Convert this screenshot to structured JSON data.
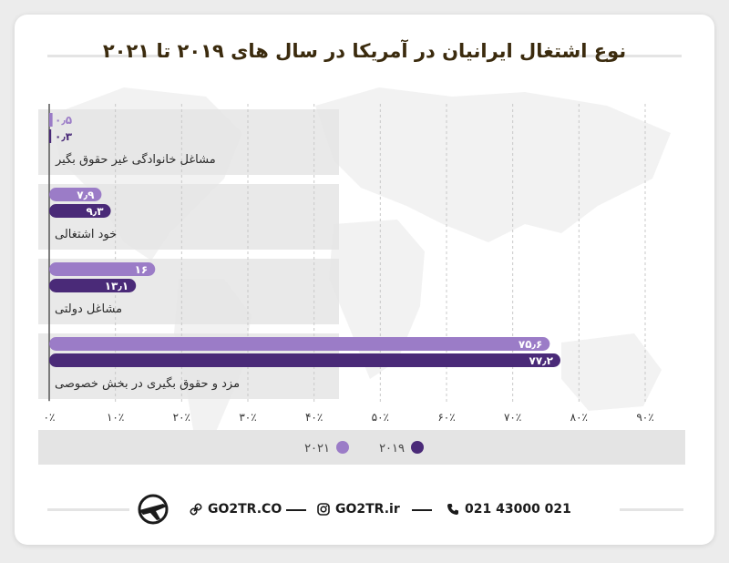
{
  "title": "نوع اشتغال ایرانیان در آمریکا در سال های ۲۰۱۹ تا ۲۰۲۱",
  "colors": {
    "y2019": "#4a2a78",
    "y2021": "#9b7cc7",
    "rowBg": "#e5e5e5",
    "legendBg": "#e4e4e4"
  },
  "chart_data": {
    "type": "bar",
    "orientation": "horizontal",
    "categories": [
      "مشاغل خانوادگی غیر حقوق بگیر",
      "خود اشتغالی",
      "مشاغل دولتی",
      "مزد و حقوق بگیری در بخش خصوصی"
    ],
    "series": [
      {
        "name": "۲۰۲۱",
        "values": [
          0.5,
          7.9,
          16,
          75.6
        ],
        "labels": [
          "۰٫۵",
          "۷٫۹",
          "۱۶",
          "۷۵٫۶"
        ]
      },
      {
        "name": "۲۰۱۹",
        "values": [
          0.3,
          9.3,
          13.1,
          77.2
        ],
        "labels": [
          "۰٫۳",
          "۹٫۳",
          "۱۳٫۱",
          "۷۷٫۲"
        ]
      }
    ],
    "xlim": [
      0,
      90
    ],
    "xticks": [
      0,
      10,
      20,
      30,
      40,
      50,
      60,
      70,
      80,
      90
    ],
    "xtick_labels": [
      "۰٪",
      "۱۰٪",
      "۲۰٪",
      "۳۰٪",
      "۴۰٪",
      "۵۰٪",
      "۶۰٪",
      "۷۰٪",
      "۸۰٪",
      "۹۰٪"
    ],
    "grid": true,
    "legend_position": "bottom"
  },
  "footer": {
    "website": "GO2TR.CO",
    "instagram": "GO2TR.ir",
    "phone": "021 43000 021"
  }
}
